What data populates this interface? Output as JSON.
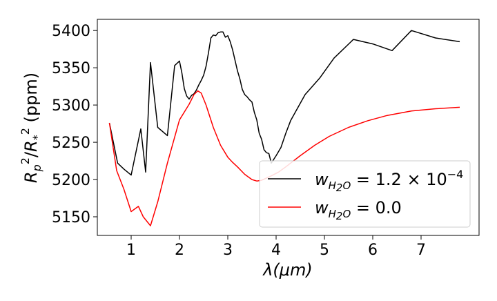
{
  "chart_data": {
    "type": "line",
    "title": "",
    "xlabel": "λ(μm)",
    "ylabel": "R_p^2/R_*^2 (ppm)",
    "xlim": [
      0.3,
      8.2
    ],
    "ylim": [
      5125,
      5415
    ],
    "x_ticks": [
      1,
      2,
      3,
      4,
      5,
      6,
      7
    ],
    "y_ticks": [
      5150,
      5200,
      5250,
      5300,
      5350,
      5400
    ],
    "grid": false,
    "legend_position": "lower-right",
    "series": [
      {
        "name": "w_H2O = 1.2 × 10^-4",
        "color": "#000000",
        "x": [
          0.55,
          0.72,
          0.85,
          1.0,
          1.2,
          1.3,
          1.4,
          1.55,
          1.75,
          1.9,
          2.0,
          2.05,
          2.1,
          2.15,
          2.2,
          2.25,
          2.3,
          2.35,
          2.4,
          2.45,
          2.5,
          2.55,
          2.6,
          2.65,
          2.7,
          2.75,
          2.8,
          2.85,
          2.9,
          2.95,
          3.0,
          3.05,
          3.1,
          3.15,
          3.2,
          3.25,
          3.3,
          3.35,
          3.4,
          3.45,
          3.5,
          3.55,
          3.6,
          3.65,
          3.7,
          3.75,
          3.8,
          3.85,
          3.9,
          4.0,
          4.1,
          4.2,
          4.3,
          4.6,
          4.9,
          5.2,
          5.6,
          6.0,
          6.4,
          6.8,
          7.3,
          7.8
        ],
        "values": [
          5276,
          5222,
          5214,
          5206,
          5268,
          5210,
          5357,
          5270,
          5259,
          5353,
          5359,
          5343,
          5322,
          5312,
          5308,
          5313,
          5315,
          5320,
          5327,
          5333,
          5340,
          5352,
          5370,
          5390,
          5394,
          5393,
          5397,
          5398,
          5398,
          5391,
          5393,
          5385,
          5374,
          5360,
          5346,
          5335,
          5321,
          5314,
          5311,
          5307,
          5304,
          5290,
          5280,
          5262,
          5254,
          5240,
          5236,
          5235,
          5222,
          5232,
          5243,
          5262,
          5279,
          5314,
          5336,
          5363,
          5388,
          5382,
          5373,
          5400,
          5390,
          5385
        ]
      },
      {
        "name": "w_H2O = 0.0",
        "color": "#ff0000",
        "x": [
          0.55,
          0.7,
          0.85,
          1.0,
          1.15,
          1.25,
          1.4,
          1.55,
          1.75,
          2.0,
          2.2,
          2.3,
          2.38,
          2.45,
          2.55,
          2.7,
          2.85,
          3.0,
          3.1,
          3.2,
          3.35,
          3.5,
          3.6,
          3.7,
          3.8,
          3.9,
          4.05,
          4.2,
          4.5,
          4.8,
          5.1,
          5.5,
          5.9,
          6.3,
          6.8,
          7.3,
          7.8
        ],
        "values": [
          5276,
          5212,
          5187,
          5157,
          5164,
          5150,
          5138,
          5170,
          5222,
          5280,
          5301,
          5314,
          5319,
          5316,
          5300,
          5270,
          5246,
          5230,
          5223,
          5217,
          5207,
          5200,
          5198,
          5199,
          5202,
          5205,
          5210,
          5217,
          5232,
          5246,
          5258,
          5270,
          5279,
          5286,
          5292,
          5295,
          5297
        ]
      }
    ]
  }
}
